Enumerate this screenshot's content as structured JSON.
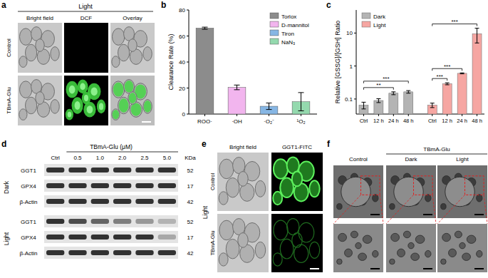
{
  "panel_labels": [
    "a",
    "b",
    "c",
    "d",
    "e",
    "f"
  ],
  "panel_a": {
    "header": "Light",
    "columns": [
      "Bright field",
      "DCF",
      "Overlay"
    ],
    "rows": [
      "Control",
      "TBmA-Glu"
    ]
  },
  "chart_data": [
    {
      "type": "bar",
      "ylabel": "Clearance Rate (%)",
      "categories": [
        "ROO·",
        "·OH",
        "·O₂⁻",
        "¹O₂"
      ],
      "series": [
        {
          "name": "Torlox",
          "color": "#8c8c8c",
          "values": [
            66,
            null,
            null,
            null
          ],
          "errors": [
            0.8,
            null,
            null,
            null
          ]
        },
        {
          "name": "D-mannitol",
          "color": "#f2b5ee",
          "values": [
            null,
            20.5,
            null,
            null
          ],
          "errors": [
            null,
            1.8,
            null,
            null
          ]
        },
        {
          "name": "Tiron",
          "color": "#86b6e4",
          "values": [
            null,
            null,
            6,
            null
          ],
          "errors": [
            null,
            null,
            2.5,
            null
          ]
        },
        {
          "name": "NaN₃",
          "color": "#94d9ae",
          "values": [
            null,
            null,
            null,
            9.5
          ],
          "errors": [
            null,
            null,
            null,
            7
          ]
        }
      ],
      "ylim": [
        0,
        80
      ],
      "yticks": [
        0,
        20,
        40,
        60,
        80
      ],
      "legend": "upper right"
    },
    {
      "type": "bar",
      "log": "y",
      "ylabel": "Relative [GSSG]/[GSH] Ratio",
      "categories": [
        "Ctrl",
        "12 h",
        "24 h",
        "48 h",
        "Ctrl",
        "12 h",
        "24 h",
        "48 h"
      ],
      "series": [
        {
          "name": "Dark",
          "color": "#b4b4b4",
          "values": [
            0.065,
            0.09,
            0.15,
            0.165,
            null,
            null,
            null,
            null
          ],
          "errors": [
            0.015,
            0.012,
            0.015,
            0.015,
            null,
            null,
            null,
            null
          ]
        },
        {
          "name": "Light",
          "color": "#f6a6a2",
          "values": [
            null,
            null,
            null,
            null,
            0.065,
            0.29,
            0.6,
            9.5
          ],
          "errors": [
            null,
            null,
            null,
            null,
            0.01,
            0.02,
            0.02,
            4.5
          ]
        }
      ],
      "ylim": [
        0.035,
        50
      ],
      "yticks": [
        0.1,
        1,
        10
      ],
      "legend": "upper left",
      "annotations": [
        {
          "text": "**",
          "from": 0,
          "to": 2
        },
        {
          "text": "***",
          "from": 0,
          "to": 3
        },
        {
          "text": "***",
          "from": 4,
          "to": 5
        },
        {
          "text": "***",
          "from": 4,
          "to": 6
        },
        {
          "text": "***",
          "from": 4,
          "to": 7
        }
      ]
    }
  ],
  "panel_d": {
    "header": "TBmA-Glu (μM)",
    "unit_label": "KDa",
    "columns": [
      "Ctrl",
      "0.5",
      "1.0",
      "2.0",
      "2.5",
      "5.0"
    ],
    "groups": [
      {
        "name": "Dark",
        "rows": [
          {
            "label": "GGT1",
            "kda": 52
          },
          {
            "label": "GPX4",
            "kda": 17
          },
          {
            "label": "β-Actin",
            "kda": 42
          }
        ]
      },
      {
        "name": "Light",
        "rows": [
          {
            "label": "GGT1",
            "kda": 52
          },
          {
            "label": "GPX4",
            "kda": 17
          },
          {
            "label": "β-Actin",
            "kda": 42
          }
        ]
      }
    ]
  },
  "panel_e": {
    "header": "Light",
    "columns": [
      "Bright field",
      "GGT1-FITC"
    ],
    "rows": [
      "Control",
      "TBmA-Glu"
    ]
  },
  "panel_f": {
    "columns": [
      "Control",
      "Dark",
      "Light"
    ],
    "group_label": "TBmA-Glu"
  }
}
